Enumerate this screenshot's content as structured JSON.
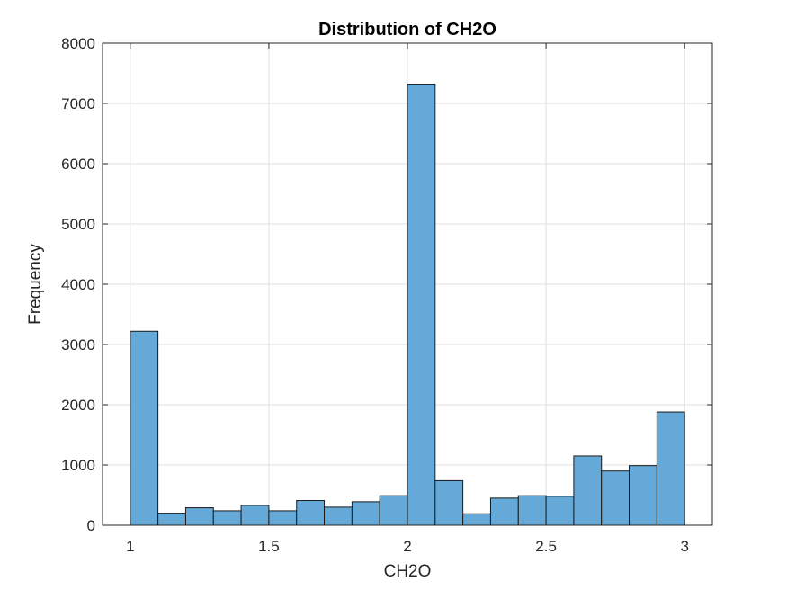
{
  "chart_data": {
    "type": "bar",
    "title": "Distribution of CH2O",
    "xlabel": "CH2O",
    "ylabel": "Frequency",
    "xlim": [
      0.9,
      3.1
    ],
    "ylim": [
      0,
      8000
    ],
    "grid": true,
    "bin_width": 0.1,
    "bins": [
      {
        "start": 1.0,
        "end": 1.1,
        "value": 3220
      },
      {
        "start": 1.1,
        "end": 1.2,
        "value": 200
      },
      {
        "start": 1.2,
        "end": 1.3,
        "value": 290
      },
      {
        "start": 1.3,
        "end": 1.4,
        "value": 240
      },
      {
        "start": 1.4,
        "end": 1.5,
        "value": 330
      },
      {
        "start": 1.5,
        "end": 1.6,
        "value": 240
      },
      {
        "start": 1.6,
        "end": 1.7,
        "value": 410
      },
      {
        "start": 1.7,
        "end": 1.8,
        "value": 300
      },
      {
        "start": 1.8,
        "end": 1.9,
        "value": 390
      },
      {
        "start": 1.9,
        "end": 2.0,
        "value": 490
      },
      {
        "start": 2.0,
        "end": 2.1,
        "value": 7320
      },
      {
        "start": 2.1,
        "end": 2.2,
        "value": 740
      },
      {
        "start": 2.2,
        "end": 2.3,
        "value": 190
      },
      {
        "start": 2.3,
        "end": 2.4,
        "value": 450
      },
      {
        "start": 2.4,
        "end": 2.5,
        "value": 490
      },
      {
        "start": 2.5,
        "end": 2.6,
        "value": 480
      },
      {
        "start": 2.6,
        "end": 2.7,
        "value": 1150
      },
      {
        "start": 2.7,
        "end": 2.8,
        "value": 900
      },
      {
        "start": 2.8,
        "end": 2.9,
        "value": 990
      },
      {
        "start": 2.9,
        "end": 3.0,
        "value": 1880
      }
    ],
    "x_ticks": [
      {
        "value": 1,
        "label": "1"
      },
      {
        "value": 1.5,
        "label": "1.5"
      },
      {
        "value": 2,
        "label": "2"
      },
      {
        "value": 2.5,
        "label": "2.5"
      },
      {
        "value": 3,
        "label": "3"
      }
    ],
    "y_ticks": [
      {
        "value": 0,
        "label": "0"
      },
      {
        "value": 1000,
        "label": "1000"
      },
      {
        "value": 2000,
        "label": "2000"
      },
      {
        "value": 3000,
        "label": "3000"
      },
      {
        "value": 4000,
        "label": "4000"
      },
      {
        "value": 5000,
        "label": "5000"
      },
      {
        "value": 6000,
        "label": "6000"
      },
      {
        "value": 7000,
        "label": "7000"
      },
      {
        "value": 8000,
        "label": "8000"
      }
    ],
    "colors": {
      "bar_fill": "#64a9d8",
      "bar_edge": "#1a1a1a",
      "grid": "#dfdfdf",
      "axis": "#262626"
    }
  }
}
